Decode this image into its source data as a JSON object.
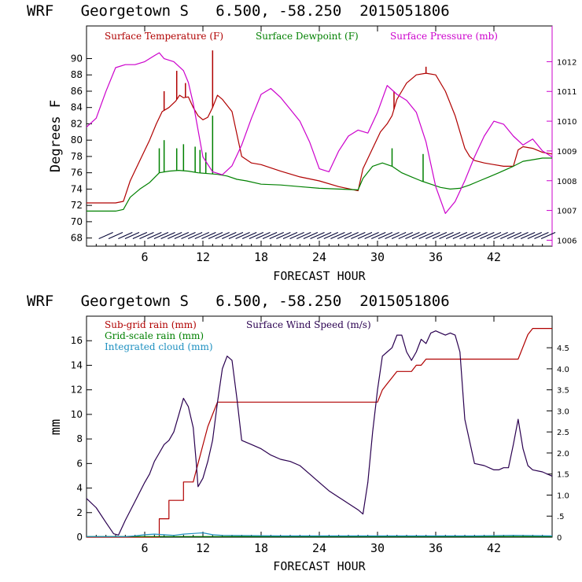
{
  "chart_data": [
    {
      "type": "line",
      "title": "WRF   Georgetown S   6.500, -58.250  2015051806",
      "xlabel": "FORECAST HOUR",
      "ylabel": "Degrees F",
      "x_ticks": [
        "6",
        "12",
        "18",
        "24",
        "30",
        "36",
        "42"
      ],
      "x_tick_values": [
        6,
        12,
        18,
        24,
        30,
        36,
        42
      ],
      "xlim": [
        0,
        48
      ],
      "ylim_left": [
        67,
        94
      ],
      "left_ticks": [
        "68",
        "70",
        "72",
        "74",
        "76",
        "78",
        "80",
        "82",
        "84",
        "86",
        "88",
        "90"
      ],
      "left_tick_values": [
        68,
        70,
        72,
        74,
        76,
        78,
        80,
        82,
        84,
        86,
        88,
        90
      ],
      "ylim_right": [
        1005.8,
        1013.2
      ],
      "right_ticks": [
        "1006",
        "1007",
        "1008",
        "1009",
        "1010",
        "1011",
        "1012"
      ],
      "right_tick_values": [
        1006,
        1007,
        1008,
        1009,
        1010,
        1011,
        1012
      ],
      "legend": [
        {
          "label": "Surface Temperature (F)",
          "color": "#b00000"
        },
        {
          "label": "Surface Dewpoint (F)",
          "color": "#008000"
        },
        {
          "label": "Surface Pressure (mb)",
          "color": "#cc00cc"
        }
      ],
      "series": [
        {
          "name": "Surface Temperature (F)",
          "color": "#b00000",
          "axis": "left",
          "x": [
            0,
            3,
            3.8,
            4.5,
            5.5,
            6.5,
            7.2,
            7.8,
            8.5,
            9.2,
            9.6,
            10,
            10.5,
            11,
            11.5,
            12,
            12.5,
            13,
            13.5,
            14,
            15,
            16,
            17,
            18,
            20,
            22,
            24,
            26,
            28,
            28.5,
            29.5,
            30.3,
            31,
            31.5,
            32,
            32.5,
            33,
            33.5,
            34,
            35,
            36,
            37,
            38,
            39,
            39.5,
            40,
            41,
            42,
            43,
            44,
            44.5,
            45,
            46,
            47,
            48
          ],
          "y": [
            72.3,
            72.3,
            72.5,
            75,
            77.5,
            80,
            82,
            83.5,
            84,
            84.8,
            85.5,
            85.2,
            85.3,
            84,
            83,
            82.5,
            82.8,
            84,
            85.5,
            85,
            83.5,
            78,
            77.2,
            77,
            76.2,
            75.5,
            75,
            74.3,
            73.8,
            76.5,
            79,
            81,
            82,
            83,
            85,
            86,
            87,
            87.5,
            88,
            88.2,
            88,
            86,
            83,
            79,
            78,
            77.5,
            77.2,
            77,
            76.8,
            76.8,
            78.8,
            79.2,
            79,
            78.5,
            78.3
          ],
          "spikes": [
            {
              "x": 8,
              "y": 86
            },
            {
              "x": 9.3,
              "y": 88.5
            },
            {
              "x": 10.2,
              "y": 87
            },
            {
              "x": 13,
              "y": 91
            },
            {
              "x": 31.7,
              "y": 86
            },
            {
              "x": 35,
              "y": 89
            }
          ]
        },
        {
          "name": "Surface Dewpoint (F)",
          "color": "#008000",
          "axis": "left",
          "x": [
            0,
            3,
            3.8,
            4.5,
            5.5,
            6.5,
            7.5,
            8.5,
            9.5,
            10.5,
            11.5,
            12.5,
            13.5,
            14.5,
            15.5,
            16.5,
            18,
            20,
            22,
            24,
            26,
            28,
            28.5,
            29.5,
            30.5,
            31.5,
            32.5,
            33.5,
            34.5,
            35.5,
            36.5,
            37.5,
            38.5,
            39.5,
            40.5,
            41.5,
            42.5,
            44,
            45,
            46,
            47,
            48
          ],
          "y": [
            71.3,
            71.3,
            71.5,
            73,
            74,
            74.8,
            76,
            76.2,
            76.3,
            76.2,
            76,
            75.9,
            75.8,
            75.6,
            75.2,
            75,
            74.6,
            74.5,
            74.3,
            74.1,
            74,
            73.9,
            75.3,
            76.8,
            77.2,
            76.8,
            76,
            75.5,
            75,
            74.6,
            74.2,
            74,
            74.1,
            74.5,
            75,
            75.5,
            76,
            76.8,
            77.4,
            77.6,
            77.8,
            77.8
          ],
          "spikes": [
            {
              "x": 7.5,
              "y": 79
            },
            {
              "x": 8,
              "y": 80
            },
            {
              "x": 9.3,
              "y": 79
            },
            {
              "x": 10,
              "y": 79.5
            },
            {
              "x": 11.2,
              "y": 79.2
            },
            {
              "x": 11.7,
              "y": 78.8
            },
            {
              "x": 12.3,
              "y": 78.5
            },
            {
              "x": 13,
              "y": 83
            },
            {
              "x": 31.5,
              "y": 79
            },
            {
              "x": 34.7,
              "y": 78.3
            }
          ]
        },
        {
          "name": "Surface Pressure (mb)",
          "color": "#cc00cc",
          "axis": "right",
          "x": [
            0,
            1,
            2,
            3,
            4,
            5,
            6,
            7,
            7.5,
            8,
            9,
            10,
            10.5,
            11,
            12,
            13,
            14,
            15,
            16,
            17,
            18,
            19,
            20,
            21,
            22,
            23,
            24,
            25,
            26,
            27,
            28,
            29,
            30,
            31,
            32,
            33,
            34,
            35,
            36,
            37,
            38,
            39,
            40,
            41,
            42,
            43,
            44,
            45,
            46,
            47,
            48
          ],
          "y": [
            1009.8,
            1010.1,
            1011,
            1011.8,
            1011.9,
            1011.9,
            1012,
            1012.2,
            1012.3,
            1012.1,
            1012,
            1011.7,
            1011.3,
            1010.6,
            1008.8,
            1008.3,
            1008.2,
            1008.5,
            1009.2,
            1010.1,
            1010.9,
            1011.1,
            1010.8,
            1010.4,
            1010,
            1009.3,
            1008.4,
            1008.3,
            1009,
            1009.5,
            1009.7,
            1009.6,
            1010.3,
            1011.2,
            1010.9,
            1010.7,
            1010.3,
            1009.3,
            1007.8,
            1006.9,
            1007.3,
            1008,
            1008.8,
            1009.5,
            1010,
            1009.9,
            1009.5,
            1009.2,
            1009.4,
            1009.0,
            1008.8
          ]
        },
        {
          "name": "Wind barbs",
          "color": "#000033",
          "axis": "left",
          "y": 68.3,
          "x": [
            2,
            3,
            4,
            4.7,
            5.5,
            6.2,
            7,
            7.7,
            8.4,
            9.1,
            9.8,
            10.5,
            11.2,
            11.9,
            12.6,
            13.3,
            14,
            14.7,
            15.4,
            16.1,
            16.8,
            17.5,
            18.2,
            18.9,
            19.6,
            20.3,
            21,
            21.7,
            22.4,
            23.1,
            23.8,
            24.5,
            25.2,
            25.9,
            26.6,
            27.3,
            28,
            28.7,
            29.4,
            30.1,
            30.8,
            31.5,
            32.2,
            32.9,
            33.6,
            34.3,
            35,
            35.7,
            36.4,
            37.1,
            37.8,
            38.5,
            39.2,
            39.9,
            40.6,
            41.3,
            42,
            42.7,
            43.4,
            44.1,
            44.8,
            45.5,
            46.2,
            46.9,
            47.6
          ]
        }
      ]
    },
    {
      "type": "line",
      "title": "WRF   Georgetown S   6.500, -58.250  2015051806",
      "xlabel": "FORECAST HOUR",
      "ylabel": "mm",
      "x_ticks": [
        "6",
        "12",
        "18",
        "24",
        "30",
        "36",
        "42"
      ],
      "x_tick_values": [
        6,
        12,
        18,
        24,
        30,
        36,
        42
      ],
      "xlim": [
        0,
        48
      ],
      "ylim_left": [
        0,
        18
      ],
      "left_ticks": [
        "0",
        "2",
        "4",
        "6",
        "8",
        "10",
        "12",
        "14",
        "16"
      ],
      "left_tick_values": [
        0,
        2,
        4,
        6,
        8,
        10,
        12,
        14,
        16
      ],
      "ylim_right": [
        0,
        5.25
      ],
      "right_ticks": [
        "0",
        ".5",
        "1.0",
        "1.5",
        "2.0",
        "2.5",
        "3.0",
        "3.5",
        "4.0",
        "4.5"
      ],
      "right_tick_values": [
        0,
        0.5,
        1.0,
        1.5,
        2.0,
        2.5,
        3.0,
        3.5,
        4.0,
        4.5
      ],
      "legend": [
        {
          "label": "Sub-grid rain (mm)",
          "color": "#b00000"
        },
        {
          "label": "Surface Wind Speed (m/s)",
          "color": "#2a0050"
        },
        {
          "label": "Grid-scale rain (mm)",
          "color": "#008000"
        },
        {
          "label": "Integrated cloud (mm)",
          "color": "#1e90c0"
        }
      ],
      "series": [
        {
          "name": "Sub-grid rain (mm)",
          "color": "#b00000",
          "axis": "left",
          "x": [
            0,
            7.5,
            7.5,
            8.5,
            8.5,
            10,
            10,
            11,
            11.5,
            12,
            12.5,
            13,
            13.5,
            20,
            29.5,
            30,
            30.5,
            31,
            31.5,
            32,
            32.5,
            33,
            33.5,
            34,
            34.5,
            35,
            35.5,
            44.5,
            45,
            45.5,
            46,
            48
          ],
          "y": [
            0,
            0,
            1.5,
            1.5,
            3,
            3,
            4.5,
            4.5,
            6,
            7.5,
            9,
            10,
            11,
            11,
            11,
            11,
            12,
            12.5,
            13,
            13.5,
            13.5,
            13.5,
            13.5,
            14,
            14,
            14.5,
            14.5,
            14.5,
            15.5,
            16.5,
            17,
            17
          ]
        },
        {
          "name": "Surface Wind Speed (m/s)",
          "color": "#2a0050",
          "axis": "right",
          "x": [
            0,
            1,
            2,
            2.8,
            3.3,
            4,
            5,
            6,
            6.5,
            7,
            7.5,
            8,
            8.5,
            9,
            9.5,
            10,
            10.5,
            11,
            11.3,
            11.5,
            12,
            12.5,
            13,
            13.5,
            14,
            14.5,
            15,
            15.5,
            16,
            17,
            18,
            19,
            20,
            21,
            22,
            23,
            24,
            25,
            26,
            27,
            28,
            28.5,
            29,
            29.5,
            30,
            30.5,
            31,
            31.5,
            32,
            32.5,
            33,
            33.5,
            34,
            34.5,
            35,
            35.5,
            36,
            36.5,
            37,
            37.5,
            38,
            38.5,
            39,
            40,
            41,
            42,
            42.5,
            43,
            43.5,
            44,
            44.5,
            45,
            45.5,
            46,
            47,
            48
          ],
          "y": [
            0.92,
            0.7,
            0.35,
            0.08,
            0.05,
            0.4,
            0.85,
            1.3,
            1.5,
            1.8,
            2.0,
            2.2,
            2.3,
            2.5,
            2.9,
            3.3,
            3.1,
            2.6,
            1.8,
            1.2,
            1.4,
            1.8,
            2.3,
            3.2,
            4.0,
            4.3,
            4.2,
            3.3,
            2.3,
            2.2,
            2.1,
            1.95,
            1.85,
            1.8,
            1.7,
            1.5,
            1.3,
            1.1,
            0.95,
            0.8,
            0.65,
            0.55,
            1.3,
            2.5,
            3.5,
            4.3,
            4.4,
            4.5,
            4.8,
            4.8,
            4.4,
            4.2,
            4.4,
            4.7,
            4.6,
            4.85,
            4.9,
            4.85,
            4.8,
            4.85,
            4.8,
            4.4,
            2.8,
            1.75,
            1.7,
            1.6,
            1.6,
            1.65,
            1.65,
            2.2,
            2.8,
            2.1,
            1.7,
            1.6,
            1.55,
            1.45
          ]
        },
        {
          "name": "Grid-scale rain (mm)",
          "color": "#008000",
          "axis": "left",
          "x": [
            0,
            48
          ],
          "y": [
            0.05,
            0.05
          ]
        },
        {
          "name": "Integrated cloud (mm)",
          "color": "#1e90c0",
          "axis": "left",
          "x": [
            0,
            4,
            5,
            6,
            7,
            8,
            9,
            10,
            11,
            12,
            13,
            14,
            20,
            30,
            36,
            40,
            44,
            48
          ],
          "y": [
            0.05,
            0.05,
            0.1,
            0.2,
            0.25,
            0.2,
            0.15,
            0.25,
            0.3,
            0.35,
            0.2,
            0.15,
            0.1,
            0.1,
            0.1,
            0.1,
            0.15,
            0.1
          ]
        }
      ]
    }
  ]
}
